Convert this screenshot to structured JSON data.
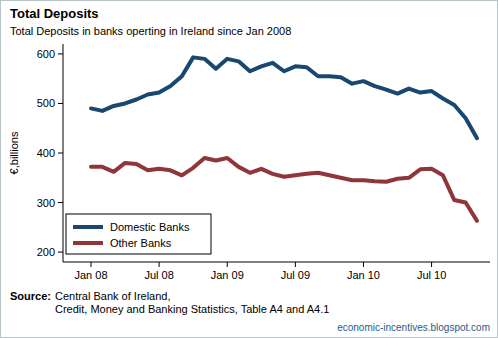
{
  "chart_data": {
    "type": "line",
    "title": "Total Deposits",
    "subtitle": "Total Deposits in banks operting in Ireland since Jan 2008",
    "y_label": "€,billions",
    "categories": [
      "Jan 08",
      null,
      null,
      null,
      null,
      null,
      "Jul 08",
      null,
      null,
      null,
      null,
      null,
      "Jan 09",
      null,
      null,
      null,
      null,
      null,
      "Jul 09",
      null,
      null,
      null,
      null,
      null,
      "Jan 10",
      null,
      null,
      null,
      null,
      null,
      "Jul 10",
      null,
      null,
      null,
      null
    ],
    "series": [
      {
        "name": "Domestic Banks",
        "color": "#1a476f",
        "values": [
          490,
          485,
          495,
          500,
          508,
          518,
          522,
          535,
          555,
          593,
          590,
          570,
          590,
          585,
          565,
          575,
          582,
          565,
          575,
          573,
          555,
          555,
          553,
          540,
          545,
          535,
          528,
          520,
          530,
          522,
          525,
          510,
          497,
          470,
          430
        ]
      },
      {
        "name": "Other Banks",
        "color": "#90353b",
        "values": [
          372,
          372,
          362,
          380,
          378,
          365,
          368,
          365,
          355,
          370,
          390,
          385,
          390,
          372,
          360,
          368,
          358,
          352,
          355,
          358,
          360,
          355,
          350,
          345,
          345,
          343,
          342,
          348,
          350,
          367,
          368,
          355,
          305,
          300,
          263
        ]
      }
    ],
    "ylim": [
      180,
      620
    ],
    "yticks": [
      200,
      300,
      400,
      500,
      600
    ],
    "grid": false,
    "legend": "lower left",
    "source_label": "Source:",
    "source": [
      "Central Bank of Ireland,",
      "Credit, Money and Banking Statistics, Table A4 and A4.1"
    ],
    "footer": "economic-incentives.blogspot.com"
  }
}
